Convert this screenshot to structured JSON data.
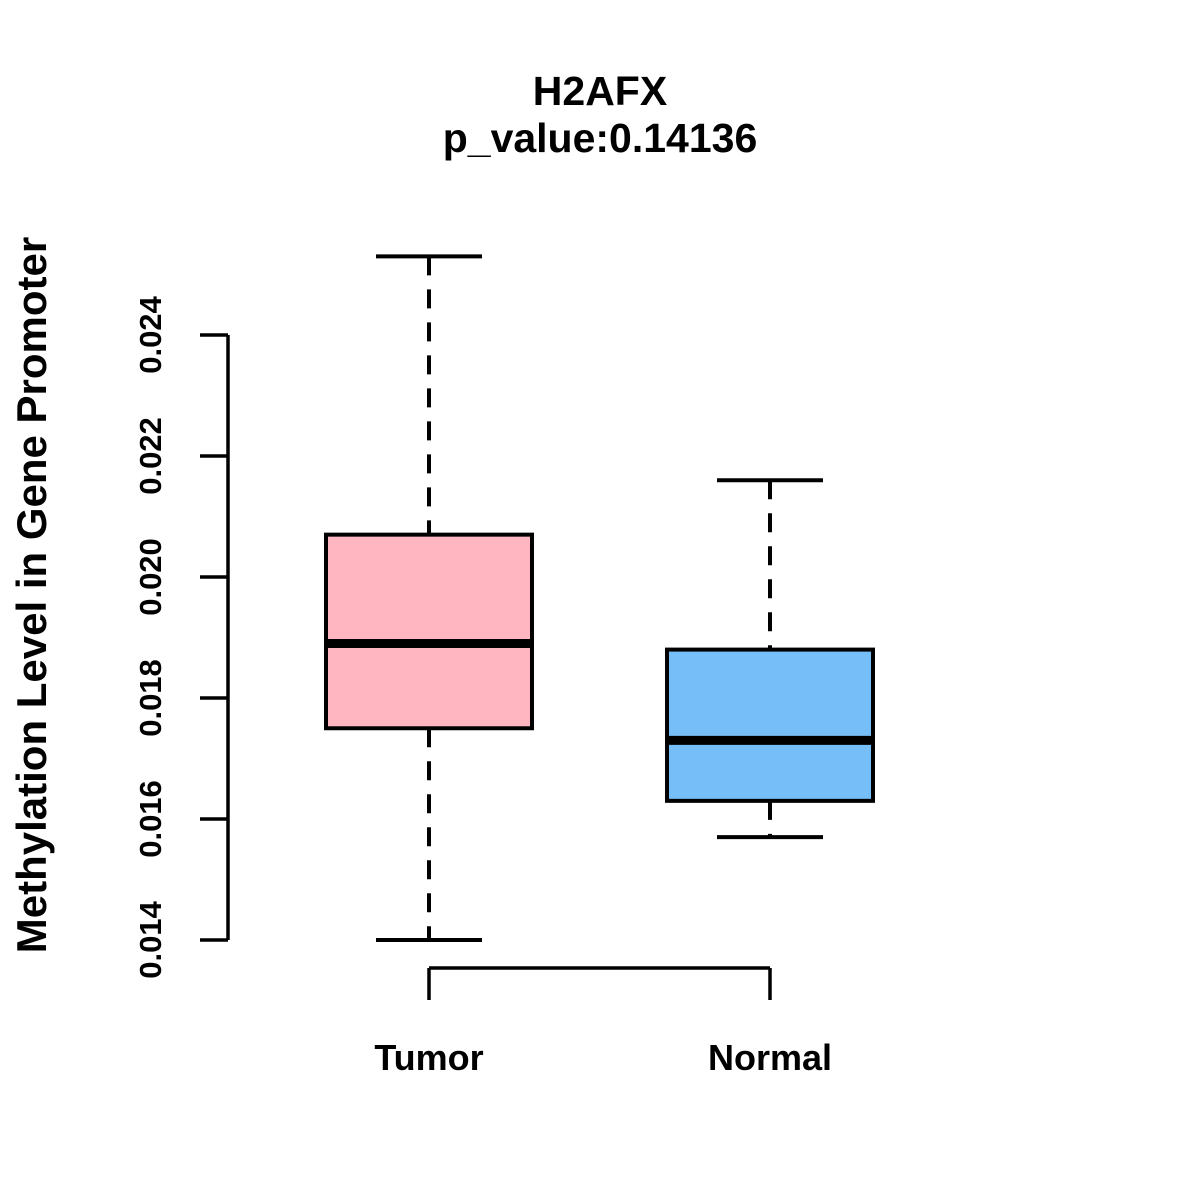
{
  "chart_data": {
    "type": "boxplot",
    "title": "H2AFX",
    "subtitle": "p_value:0.14136",
    "ylabel": "Methylation Level in Gene Promoter",
    "xlabel": "",
    "categories": [
      "Tumor",
      "Normal"
    ],
    "yticks": [
      0.014,
      0.016,
      0.018,
      0.02,
      0.022,
      0.024
    ],
    "ytick_labels": [
      "0.014",
      "0.016",
      "0.018",
      "0.020",
      "0.022",
      "0.024"
    ],
    "ylim": [
      0.0135,
      0.0256
    ],
    "grid": false,
    "legend": "none",
    "whisker_style": "dashed",
    "box_border_color": "#000000",
    "median_color": "#000000",
    "series": [
      {
        "name": "Tumor",
        "whisker_low": 0.014,
        "q1": 0.0175,
        "median": 0.0189,
        "q3": 0.0207,
        "whisker_high": 0.0253,
        "outliers": [],
        "color": "#FFB6C1"
      },
      {
        "name": "Normal",
        "whisker_low": 0.0157,
        "q1": 0.0163,
        "median": 0.0173,
        "q3": 0.0188,
        "whisker_high": 0.0216,
        "outliers": [],
        "color": "#75BEF8"
      }
    ]
  }
}
